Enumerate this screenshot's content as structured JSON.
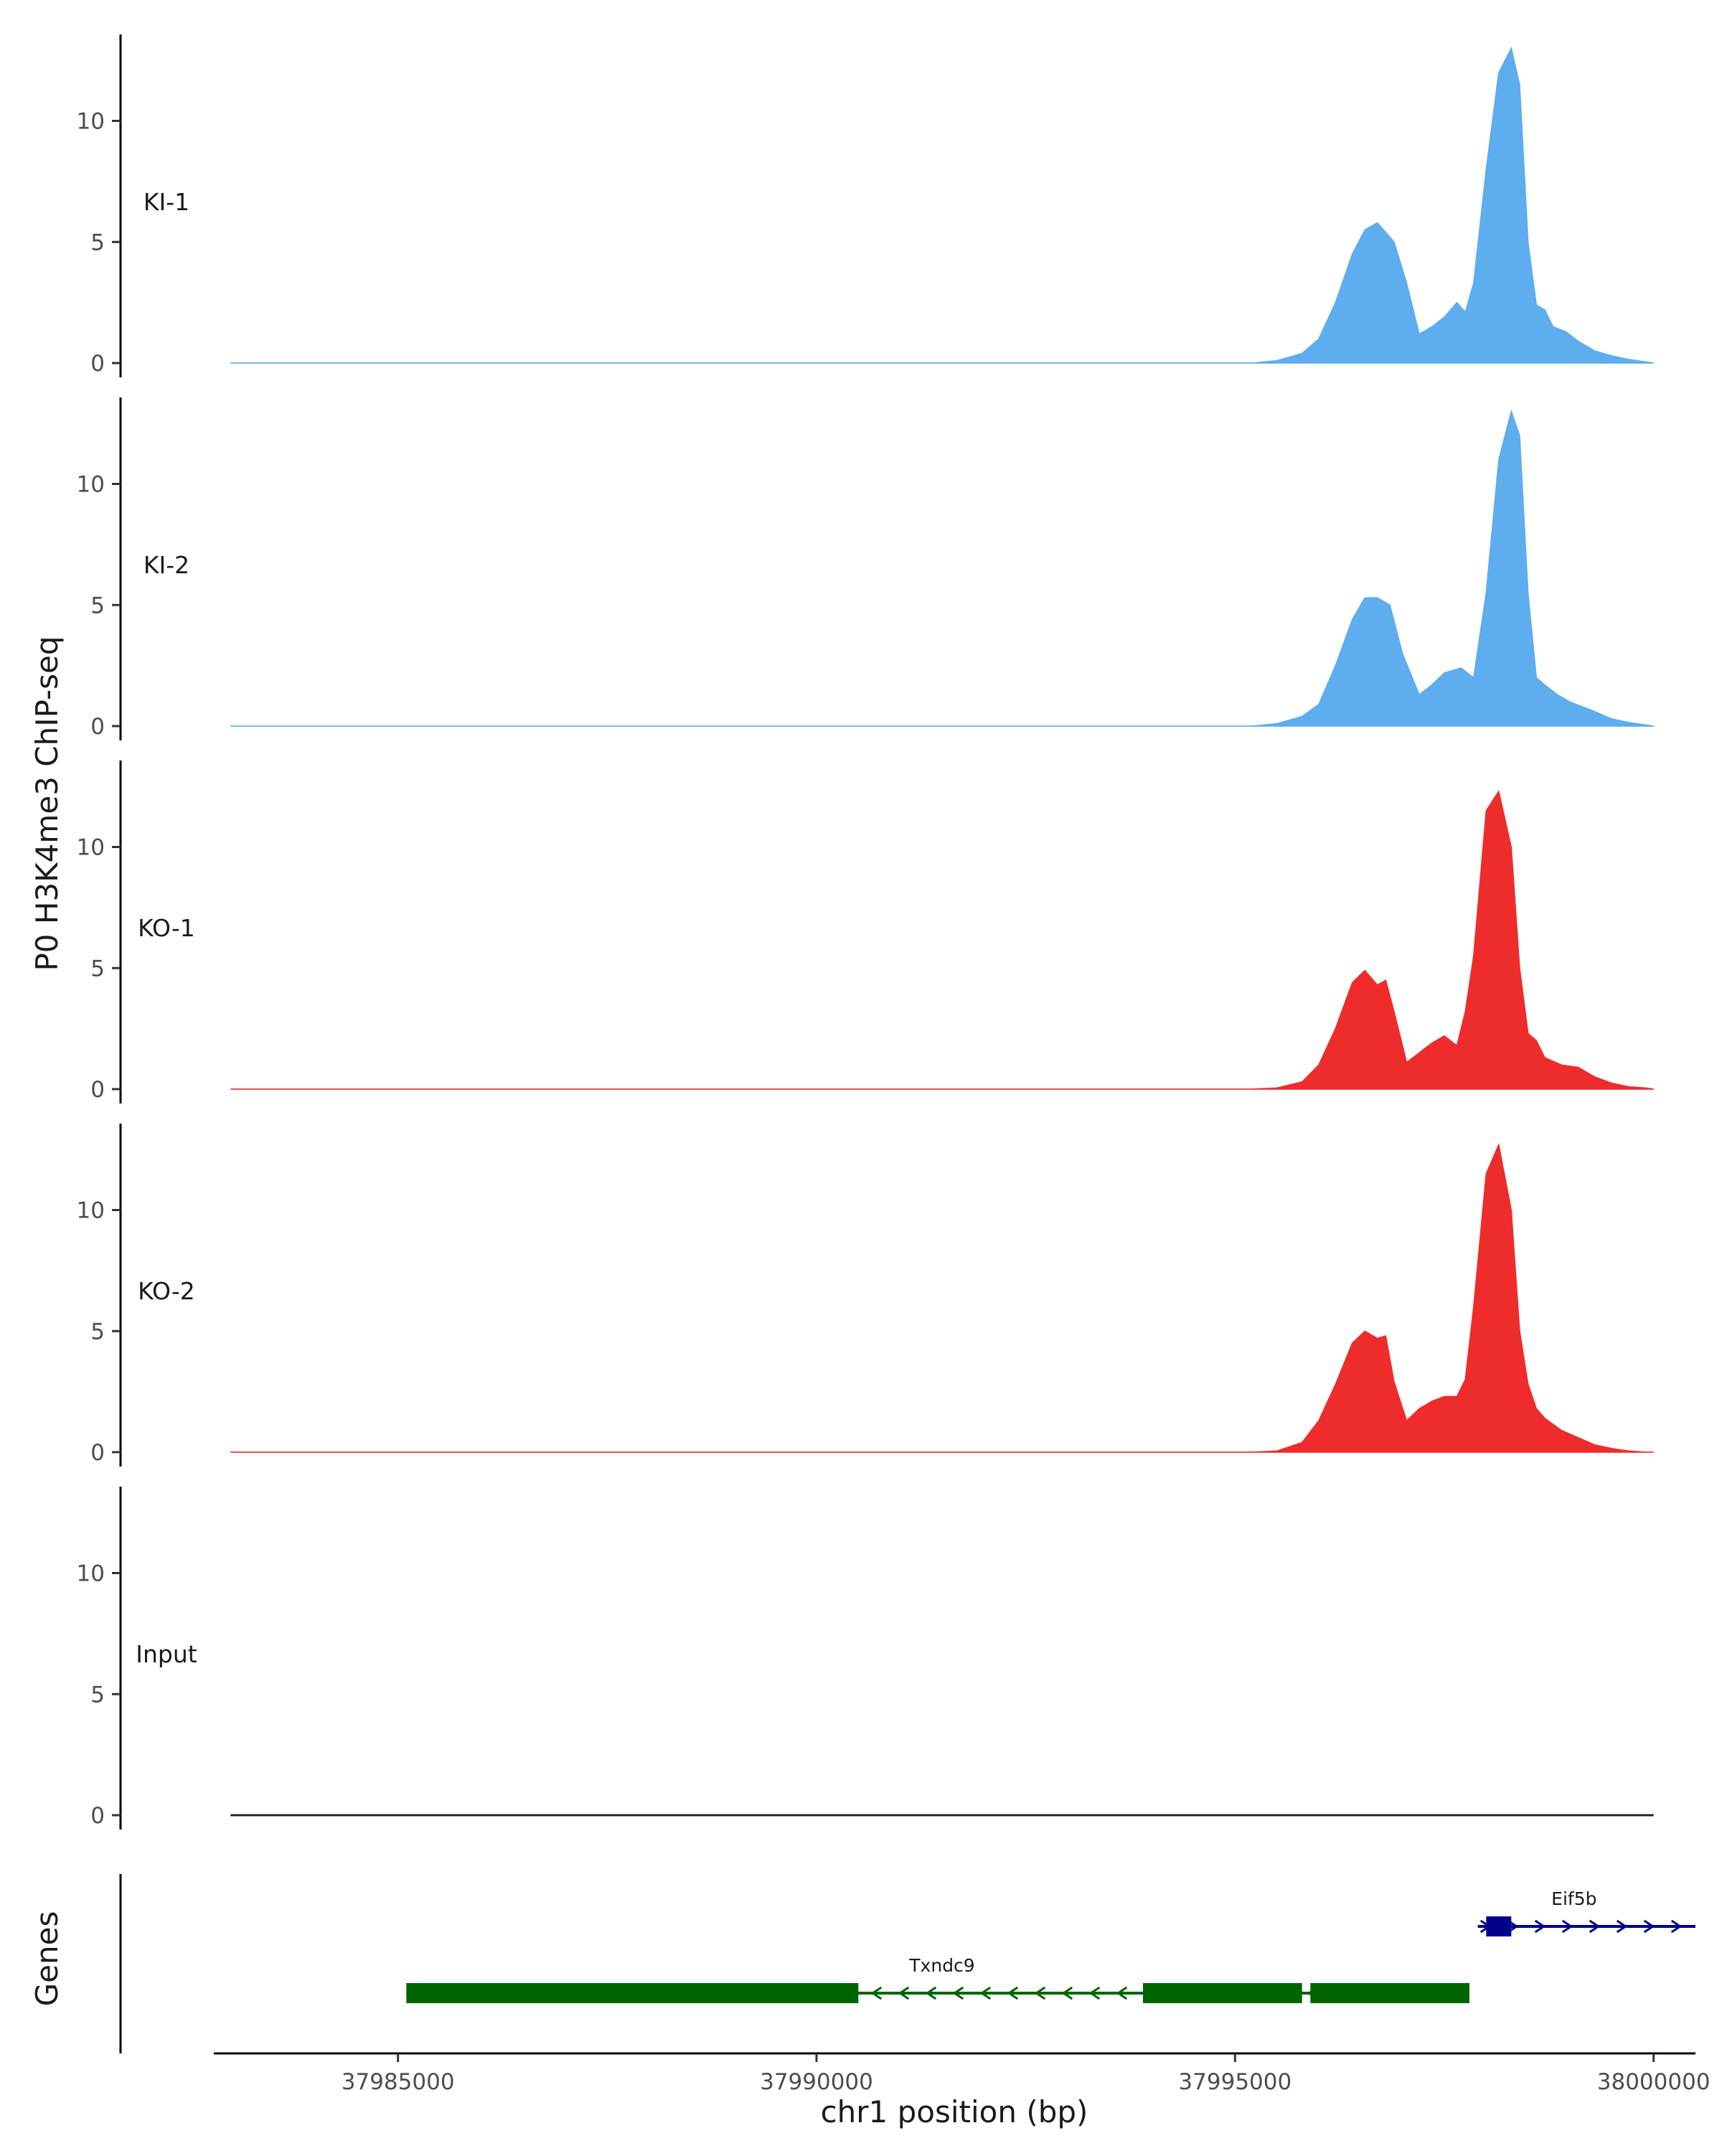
{
  "chart_data": {
    "type": "area",
    "ylabel": "P0 H3K4me3 ChIP-seq",
    "xlabel": "chr1 position (bp)",
    "genes_axis_label": "Genes",
    "x_range": [
      37982800,
      38000500
    ],
    "y_range": [
      0,
      13.5
    ],
    "y_ticks": [
      0,
      5,
      10
    ],
    "x_ticks": [
      37985000,
      37990000,
      37995000,
      38000000
    ],
    "x_tick_labels": [
      "37985000",
      "37990000",
      "37995000",
      "38000000"
    ],
    "colors": {
      "KI": "#5eadee",
      "KO": "#ee2c2c",
      "Input": "#1a1a1a",
      "Txndc9": "#006400",
      "Eif5b": "#00008b"
    },
    "tracks": [
      {
        "name": "KI-1",
        "color": "#5eadee",
        "x": [
          37983000,
          37995200,
          37995500,
          37995800,
          37996000,
          37996200,
          37996400,
          37996550,
          37996700,
          37996800,
          37996900,
          37997050,
          37997200,
          37997350,
          37997500,
          37997650,
          37997750,
          37997850,
          37998000,
          37998150,
          37998300,
          37998400,
          37998500,
          37998600,
          37998700,
          37998800,
          37998950,
          37999100,
          37999300,
          37999500,
          37999700,
          37999900,
          38000000
        ],
        "y": [
          0,
          0,
          0.1,
          0.4,
          1.0,
          2.5,
          4.5,
          5.5,
          5.8,
          5.4,
          5.0,
          3.3,
          1.2,
          1.5,
          1.9,
          2.5,
          2.1,
          3.3,
          8.0,
          12.0,
          13.0,
          11.5,
          5.0,
          2.4,
          2.2,
          1.5,
          1.3,
          0.9,
          0.5,
          0.3,
          0.15,
          0.05,
          0
        ]
      },
      {
        "name": "KI-2",
        "color": "#5eadee",
        "x": [
          37983000,
          37995200,
          37995500,
          37995800,
          37996000,
          37996200,
          37996400,
          37996550,
          37996700,
          37996850,
          37997000,
          37997200,
          37997350,
          37997500,
          37997700,
          37997850,
          37998000,
          37998150,
          37998300,
          37998400,
          37998500,
          37998600,
          37998700,
          37998850,
          37999000,
          37999150,
          37999300,
          37999500,
          37999700,
          37999900,
          38000000
        ],
        "y": [
          0,
          0,
          0.1,
          0.4,
          0.9,
          2.5,
          4.4,
          5.3,
          5.3,
          5.0,
          3.0,
          1.3,
          1.7,
          2.2,
          2.4,
          2.0,
          5.5,
          11.0,
          13.0,
          12.0,
          5.5,
          2.0,
          1.7,
          1.3,
          1.0,
          0.8,
          0.6,
          0.3,
          0.15,
          0.05,
          0
        ]
      },
      {
        "name": "KO-1",
        "color": "#ee2c2c",
        "x": [
          37983000,
          37995200,
          37995500,
          37995800,
          37996000,
          37996200,
          37996400,
          37996550,
          37996700,
          37996800,
          37996900,
          37997050,
          37997200,
          37997350,
          37997500,
          37997650,
          37997750,
          37997850,
          37998000,
          37998150,
          37998300,
          37998400,
          37998500,
          37998600,
          37998700,
          37998900,
          37999100,
          37999300,
          37999500,
          37999700,
          37999900,
          38000000
        ],
        "y": [
          0,
          0,
          0.05,
          0.3,
          1.0,
          2.5,
          4.4,
          4.9,
          4.3,
          4.5,
          3.2,
          1.1,
          1.5,
          1.9,
          2.2,
          1.8,
          3.2,
          5.5,
          11.5,
          12.3,
          10.0,
          5.0,
          2.3,
          2.0,
          1.3,
          1.0,
          0.9,
          0.5,
          0.25,
          0.1,
          0.05,
          0
        ]
      },
      {
        "name": "KO-2",
        "color": "#ee2c2c",
        "x": [
          37983000,
          37995200,
          37995500,
          37995800,
          37996000,
          37996200,
          37996400,
          37996550,
          37996700,
          37996800,
          37996900,
          37997050,
          37997200,
          37997350,
          37997500,
          37997650,
          37997750,
          37997850,
          37998000,
          37998150,
          37998300,
          37998400,
          37998500,
          37998600,
          37998700,
          37998900,
          37999100,
          37999300,
          37999500,
          37999700,
          37999900,
          38000000
        ],
        "y": [
          0,
          0,
          0.05,
          0.4,
          1.3,
          2.8,
          4.5,
          5.0,
          4.7,
          4.8,
          2.9,
          1.3,
          1.8,
          2.1,
          2.3,
          2.3,
          3.0,
          6.0,
          11.5,
          12.7,
          10.0,
          5.0,
          2.8,
          1.8,
          1.4,
          0.9,
          0.6,
          0.3,
          0.15,
          0.05,
          0,
          0
        ]
      },
      {
        "name": "Input",
        "color": "#1a1a1a",
        "x": [
          37983000,
          38000000
        ],
        "y": [
          0,
          0
        ]
      }
    ],
    "genes": [
      {
        "name": "Txndc9",
        "strand": "-",
        "color": "#006400",
        "start": 37985100,
        "end": 37997800,
        "exons": [
          [
            37985100,
            37990500
          ],
          [
            37993900,
            37995800
          ],
          [
            37995900,
            37997800
          ]
        ]
      },
      {
        "name": "Eif5b",
        "strand": "+",
        "color": "#00008b",
        "start": 37997900,
        "end": 38000500,
        "exons": [
          [
            37998000,
            37998300
          ]
        ]
      }
    ]
  }
}
